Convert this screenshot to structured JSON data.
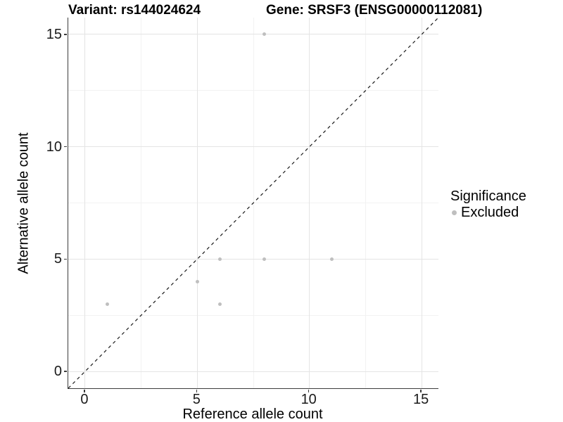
{
  "chart_data": {
    "type": "scatter",
    "title_left": "Variant: rs144024624",
    "title_right": "Gene: SRSF3 (ENSG00000112081)",
    "xlabel": "Reference allele count",
    "ylabel": "Alternative allele count",
    "xlim": [
      -0.75,
      15.75
    ],
    "ylim": [
      -0.75,
      15.75
    ],
    "xticks": [
      0,
      5,
      10,
      15
    ],
    "yticks": [
      0,
      5,
      10,
      15
    ],
    "xticks_minor": [
      2.5,
      7.5,
      12.5
    ],
    "yticks_minor": [
      2.5,
      7.5,
      12.5
    ],
    "grid": "major+minor",
    "series": [
      {
        "name": "Excluded",
        "marker": "circle",
        "color": "#bfbfbf",
        "points": [
          [
            1,
            3
          ],
          [
            5,
            4
          ],
          [
            6,
            3
          ],
          [
            6,
            5
          ],
          [
            8,
            5
          ],
          [
            8,
            15
          ],
          [
            11,
            5
          ]
        ]
      }
    ],
    "reference_line": {
      "kind": "identity y=x",
      "style": "dashed",
      "color": "#1a1a1a"
    },
    "legend": {
      "title": "Significance",
      "position": "right",
      "items": [
        {
          "label": "Excluded",
          "color": "#bfbfbf"
        }
      ]
    }
  },
  "colors": {
    "background": "#ffffff",
    "grid_major": "#e4e4e4",
    "grid_minor": "#f2f2f2",
    "axis_line": "#3c3c3c",
    "tick_label": "#1a1a1a",
    "point": "#bfbfbf",
    "title": "#000000"
  }
}
